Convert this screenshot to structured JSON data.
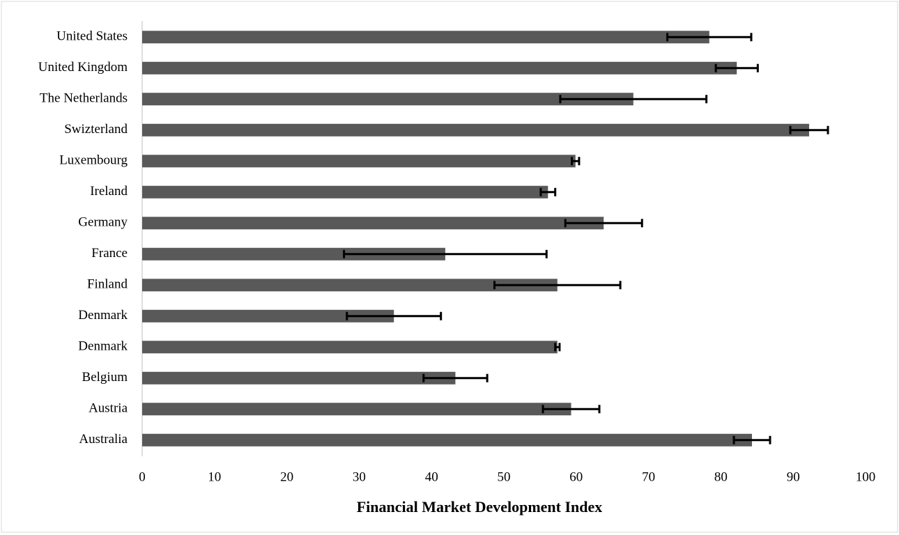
{
  "chart_data": {
    "type": "bar",
    "orientation": "horizontal",
    "xlabel": "Financial Market Development Index",
    "categories": [
      "United States",
      "United Kingdom",
      "The Netherlands",
      "Swizterland",
      "Luxembourg",
      "Ireland",
      "Germany",
      "France",
      "Finland",
      "Denmark",
      "Denmark",
      "Belgium",
      "Austria",
      "Australia"
    ],
    "values": [
      78.4,
      82.2,
      67.9,
      92.2,
      59.9,
      56.1,
      63.8,
      41.9,
      57.4,
      34.8,
      57.4,
      43.3,
      59.3,
      84.3
    ],
    "errors": [
      5.8,
      2.9,
      10.1,
      2.6,
      0.5,
      1.0,
      5.3,
      14.0,
      8.7,
      6.5,
      0.3,
      4.4,
      3.9,
      2.5
    ],
    "color": "#595959",
    "error_color": "#000000",
    "xlim": [
      0,
      100
    ],
    "xticks": [
      0,
      10,
      20,
      30,
      40,
      50,
      60,
      70,
      80,
      90,
      100
    ]
  }
}
